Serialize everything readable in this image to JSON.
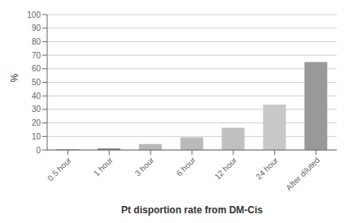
{
  "chart_data": {
    "type": "bar",
    "categories": [
      "0.5 hour",
      "1 hour",
      "3 hour",
      "6 hour",
      "12 hour",
      "24 hour",
      "After diluted"
    ],
    "values": [
      0.58,
      1.2,
      4.42,
      9.3,
      16.42,
      33.48,
      65.0
    ],
    "colors": [
      "#888888",
      "#888888",
      "#b8b8b8",
      "#bababa",
      "#c0c0c0",
      "#c8c8c8",
      "#999999"
    ],
    "xlabel": "Pt disportion rate from DM-Cis",
    "ylabel": "%",
    "ylim": [
      0,
      100
    ],
    "yticks": [
      0,
      10,
      20,
      30,
      40,
      50,
      60,
      70,
      80,
      90,
      100
    ],
    "grid": true
  }
}
